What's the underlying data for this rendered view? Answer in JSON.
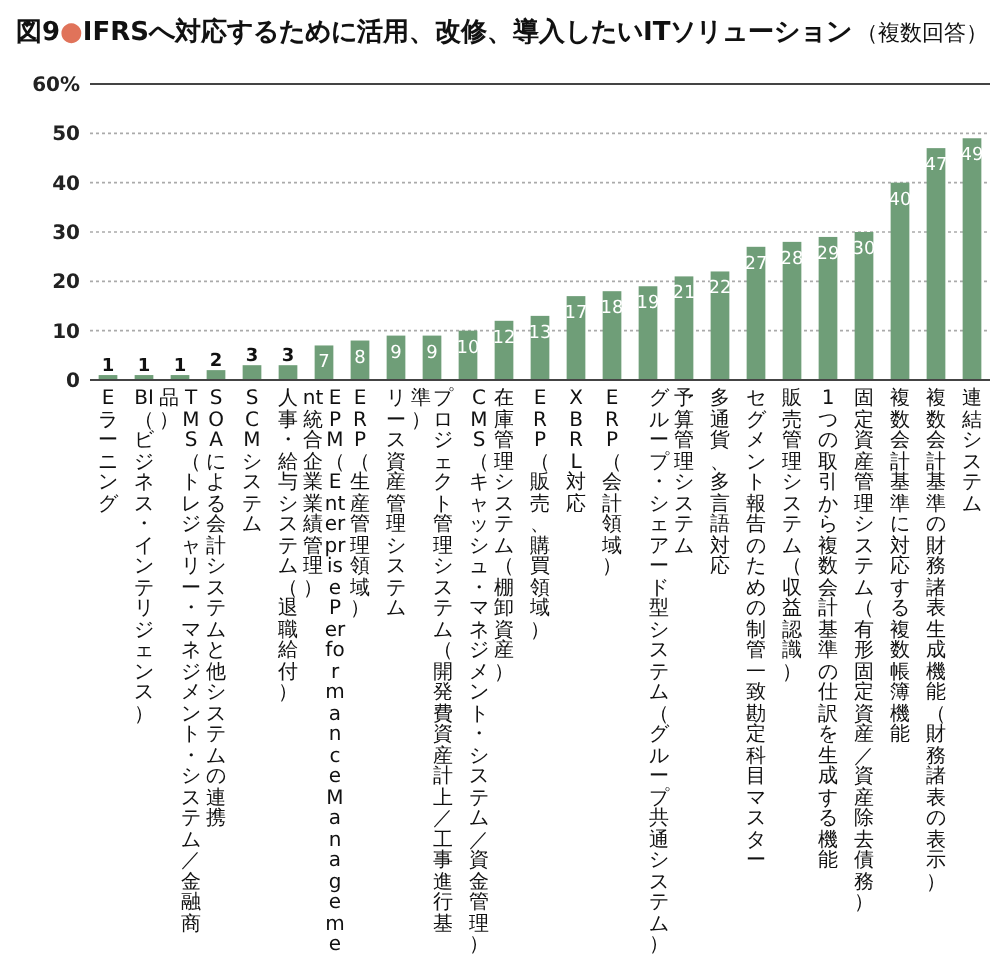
{
  "chart_data": {
    "type": "bar",
    "title": "図9●IFRSへ対応するために活用、改修、導入したいITソリューション",
    "annotations": [
      "（複数回答）"
    ],
    "categories": [
      "Eラーニング",
      "BI（ビジネス・インテリジェンス）",
      "TMS（トレジャリー・マネジメント・システム／金融商品）",
      "SOAによる会計システムと他システムの連携",
      "SCMシステム",
      "人事・給与システム（退職給付）",
      "EPM（Enterprise Performance Management 統合企業業績管理）",
      "ERP（生産管理領域）",
      "リース資産管理システム",
      "プロジェクト管理システム（開発費資産計上／工事進行基準）",
      "CMS（キャッシュ・マネジメント・システム／資金管理）",
      "在庫管理システム（棚卸資産）",
      "ERP（販売、購買領域）",
      "XBRL対応",
      "ERP（会計領域）",
      "グループ・シェアード型システム（グループ共通システム）",
      "予算管理システム",
      "多通貨、多言語対応",
      "セグメント報告のための制管一致勘定科目マスター",
      "販売管理システム（収益認識）",
      "1つの取引から複数会計基準の仕訳を生成する機能",
      "固定資産管理システム（有形固定資産／資産除去債務）",
      "複数会計基準に対応する複数帳簿機能",
      "複数会計基準の財務諸表生成機能（財務諸表の表示）",
      "連結システム"
    ],
    "values": [
      1,
      1,
      1,
      2,
      3,
      3,
      7,
      8,
      9,
      9,
      10,
      12,
      13,
      17,
      18,
      19,
      21,
      22,
      27,
      28,
      29,
      30,
      40,
      47,
      49
    ],
    "color": "#6f9e78",
    "ylim": [
      0,
      60
    ],
    "yticks": [
      0,
      10,
      20,
      30,
      40,
      50,
      {
        "value": 60,
        "label": "60%"
      }
    ],
    "grid": "y",
    "data_labels": true
  }
}
